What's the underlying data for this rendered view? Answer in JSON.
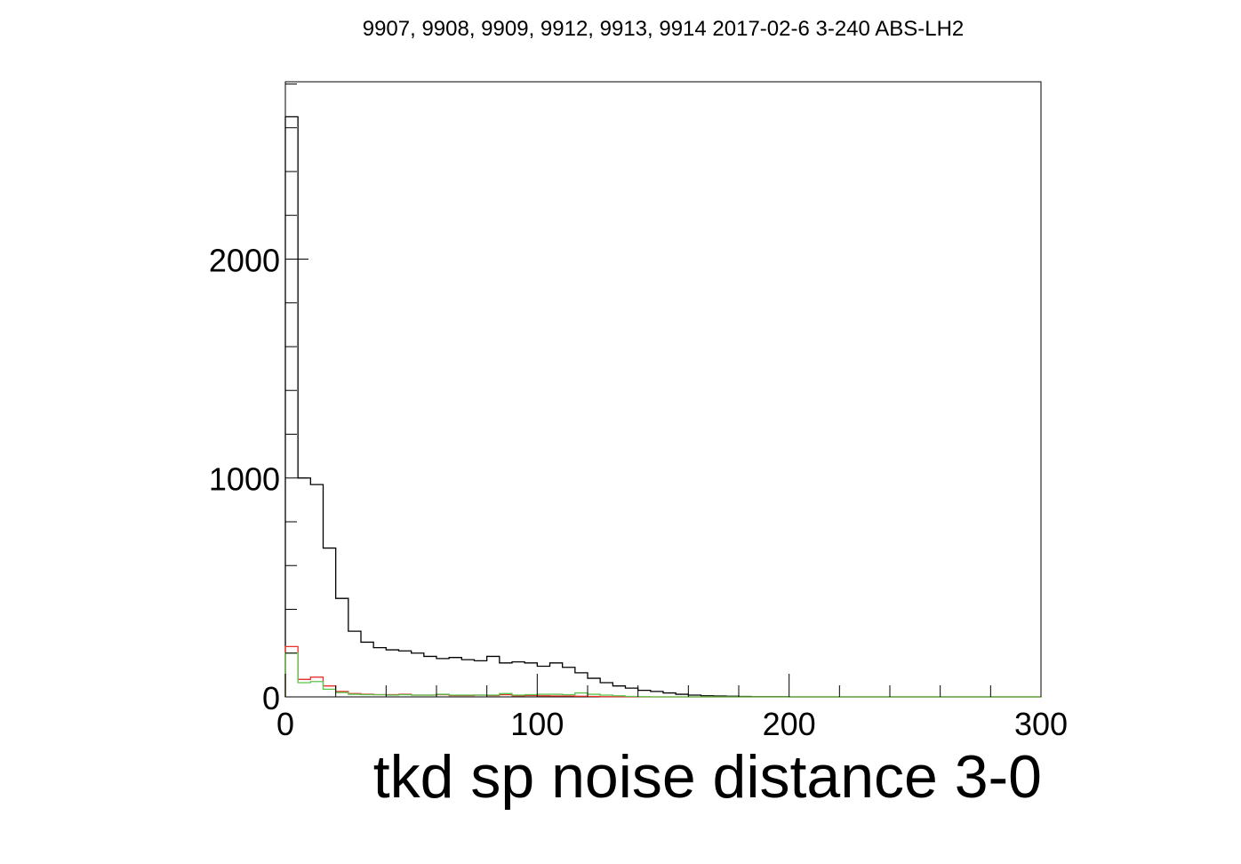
{
  "chart_data": {
    "type": "histogram",
    "title": "9907, 9908, 9909, 9912, 9913, 9914 2017-02-6 3-240 ABS-LH2",
    "xlabel": "tkd sp noise distance 3-0",
    "ylabel": "",
    "xlim": [
      0,
      300
    ],
    "ylim": [
      0,
      2810
    ],
    "grid": false,
    "bin_width": 5,
    "x_ticks": [
      {
        "value": 0,
        "label": "0"
      },
      {
        "value": 100,
        "label": "100"
      },
      {
        "value": 200,
        "label": "200"
      },
      {
        "value": 300,
        "label": "300"
      }
    ],
    "y_ticks": [
      {
        "value": 0,
        "label": "0"
      },
      {
        "value": 1000,
        "label": "1000"
      },
      {
        "value": 2000,
        "label": "2000"
      }
    ],
    "series": [
      {
        "name": "all",
        "color": "#000000",
        "values": [
          2650,
          1000,
          970,
          680,
          450,
          300,
          250,
          225,
          215,
          210,
          200,
          185,
          175,
          180,
          170,
          165,
          185,
          155,
          160,
          155,
          140,
          155,
          135,
          110,
          85,
          65,
          50,
          40,
          30,
          25,
          18,
          12,
          8,
          5,
          4,
          3,
          2,
          1,
          1,
          1,
          0,
          0,
          0,
          0,
          0,
          0,
          0,
          0,
          0,
          0,
          0,
          0,
          0,
          0,
          0,
          0,
          0,
          0,
          0,
          0
        ]
      },
      {
        "name": "red",
        "color": "#e8312a",
        "values": [
          230,
          80,
          90,
          50,
          25,
          15,
          12,
          10,
          10,
          12,
          8,
          8,
          10,
          6,
          6,
          8,
          6,
          10,
          5,
          6,
          5,
          4,
          4,
          3,
          2,
          1,
          1,
          0,
          0,
          0,
          0,
          0,
          0,
          0,
          0,
          0,
          0,
          0,
          0,
          0,
          0,
          0,
          0,
          0,
          0,
          0,
          0,
          0,
          0,
          0,
          0,
          0,
          0,
          0,
          0,
          0,
          0,
          0,
          0,
          0
        ]
      },
      {
        "name": "green",
        "color": "#5ac34b",
        "values": [
          200,
          65,
          70,
          35,
          20,
          12,
          10,
          10,
          8,
          10,
          8,
          8,
          12,
          8,
          8,
          8,
          8,
          15,
          8,
          10,
          12,
          12,
          10,
          18,
          12,
          8,
          5,
          2,
          1,
          0,
          0,
          0,
          0,
          0,
          0,
          0,
          0,
          0,
          0,
          0,
          0,
          0,
          0,
          0,
          0,
          0,
          0,
          0,
          0,
          0,
          0,
          0,
          0,
          0,
          0,
          0,
          0,
          0,
          0,
          0
        ]
      }
    ]
  }
}
